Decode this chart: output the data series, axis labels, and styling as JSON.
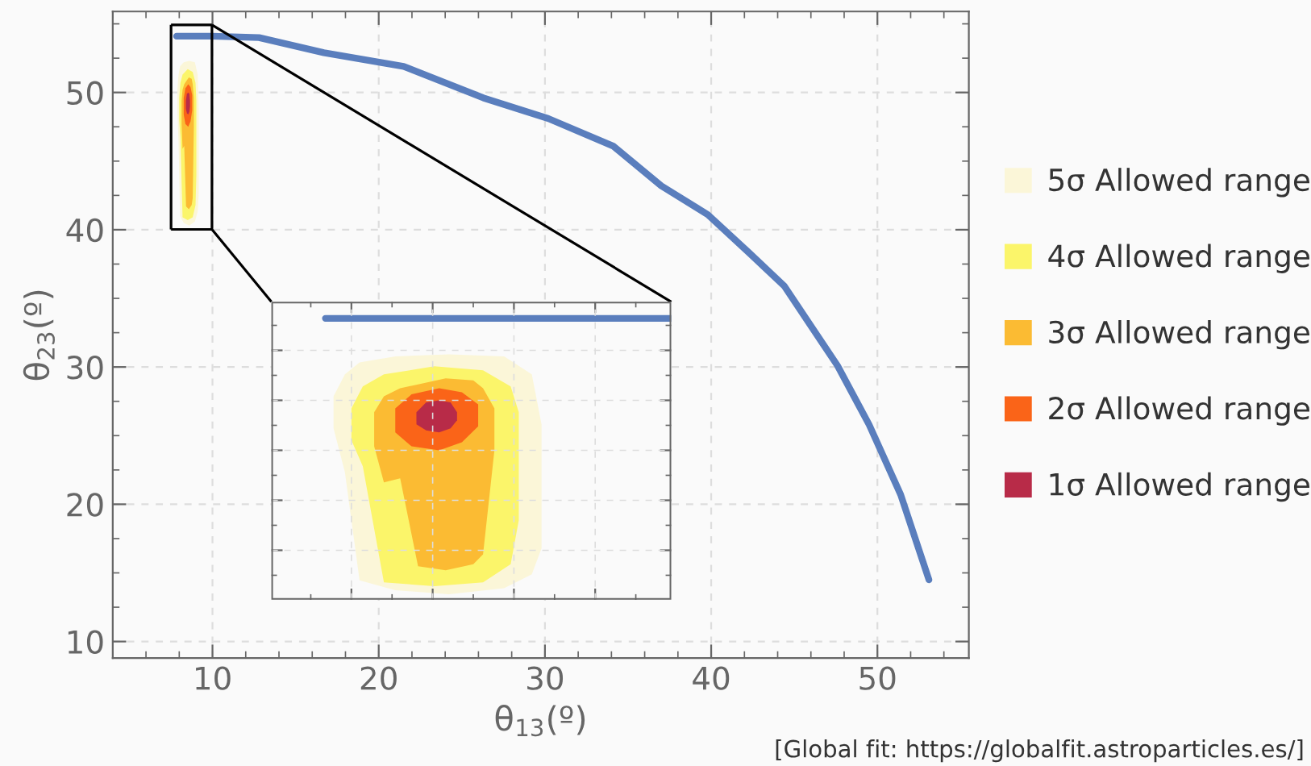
{
  "chart_data": {
    "type": "line",
    "xlabel": "θ$_{13}$(º)",
    "ylabel": "θ$_{23}$(º)",
    "xlim": [
      4,
      55.5
    ],
    "ylim": [
      8.8,
      55.9
    ],
    "xticks": [
      10,
      20,
      30,
      40,
      50
    ],
    "yticks": [
      10,
      20,
      30,
      40,
      50
    ],
    "grid": true,
    "legend": "right",
    "marker": "none",
    "line_style": "solid",
    "annotations": [
      "[Global fit: https://globalfit.astroparticles.es/]"
    ],
    "series": [
      {
        "name": "5σ Allowed range",
        "type": "area",
        "color": "#fbf6d8",
        "x": [
          7.89,
          7.96,
          8.05,
          8.27,
          8.6,
          8.94,
          9.11,
          9.17,
          9.17,
          9.11,
          8.94,
          8.6,
          8.27,
          8.05,
          7.96,
          7.89
        ],
        "values": [
          50.2,
          51.3,
          51.9,
          52.2,
          52.3,
          52.2,
          51.3,
          48.8,
          42.6,
          41.3,
          40.6,
          40.3,
          40.5,
          41.0,
          46.4,
          48.6
        ]
      },
      {
        "name": "4σ Allowed range",
        "type": "area",
        "color": "#fbf56a",
        "x": [
          8.0,
          8.07,
          8.2,
          8.51,
          8.81,
          8.98,
          9.03,
          9.03,
          8.98,
          8.81,
          8.51,
          8.2,
          8.07,
          8.0
        ],
        "values": [
          49.6,
          50.7,
          51.3,
          51.7,
          51.5,
          50.7,
          49.4,
          44.0,
          41.8,
          40.9,
          40.7,
          40.9,
          46.7,
          48.0
        ]
      },
      {
        "name": "3σ Allowed range",
        "type": "area",
        "color": "#fbbb33",
        "x": [
          8.14,
          8.2,
          8.3,
          8.41,
          8.58,
          8.75,
          8.81,
          8.88,
          8.88,
          8.81,
          8.75,
          8.58,
          8.41,
          8.3,
          8.2,
          8.14
        ],
        "values": [
          49.4,
          50.2,
          50.6,
          50.8,
          51.1,
          51.0,
          50.6,
          49.6,
          47.5,
          42.3,
          41.8,
          41.5,
          41.7,
          46.1,
          45.9,
          47.7
        ]
      },
      {
        "name": "2σ Allowed range",
        "type": "area",
        "color": "#fa6418",
        "x": [
          8.27,
          8.37,
          8.54,
          8.68,
          8.78,
          8.78,
          8.68,
          8.54,
          8.37,
          8.27
        ],
        "values": [
          49.6,
          50.3,
          50.6,
          50.4,
          49.8,
          48.7,
          47.9,
          47.5,
          47.7,
          48.4
        ]
      },
      {
        "name": "1σ Allowed range",
        "type": "area",
        "color": "#b82b48",
        "x": [
          8.4,
          8.46,
          8.54,
          8.61,
          8.65,
          8.65,
          8.61,
          8.54,
          8.46,
          8.4
        ],
        "values": [
          49.4,
          49.9,
          50.0,
          49.9,
          49.4,
          49.0,
          48.6,
          48.4,
          48.5,
          48.8
        ]
      },
      {
        "color": "#5a7ebd",
        "x": [
          7.84,
          10,
          12.8,
          16.7,
          21.5,
          26.3,
          30.2,
          34.1,
          37.0,
          39.8,
          42.3,
          44.4,
          47.6,
          49.5,
          51.4,
          53.1
        ],
        "values": [
          54.1,
          54.1,
          54.0,
          52.9,
          51.9,
          49.6,
          48.1,
          46.1,
          43.2,
          41.1,
          38.3,
          35.9,
          30.1,
          25.8,
          20.7,
          14.5
        ]
      }
    ]
  }
}
